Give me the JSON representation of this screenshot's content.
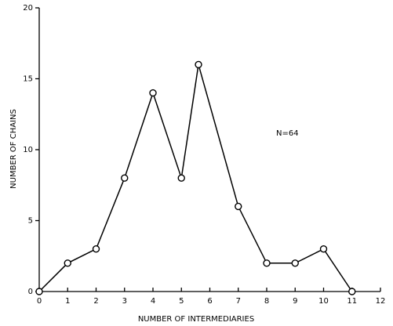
{
  "chart_data": {
    "type": "line",
    "x_label": "NUMBER OF INTERMEDIARIES",
    "y_label": "NUMBER OF CHAINS",
    "annotation": "N=64",
    "x": [
      0,
      1,
      2,
      3,
      4,
      5,
      5.6,
      7,
      8,
      9,
      10,
      11
    ],
    "values": [
      0,
      2,
      3,
      8,
      14,
      8,
      16,
      6,
      2,
      2,
      3,
      0
    ],
    "color": "#000000",
    "xlim": [
      0,
      12
    ],
    "xticks": [
      0,
      1,
      2,
      3,
      4,
      5,
      6,
      7,
      8,
      9,
      10,
      11,
      12
    ],
    "ylim": [
      0,
      20
    ],
    "yticks": [
      0,
      5,
      10,
      15,
      20
    ],
    "grid": false
  }
}
